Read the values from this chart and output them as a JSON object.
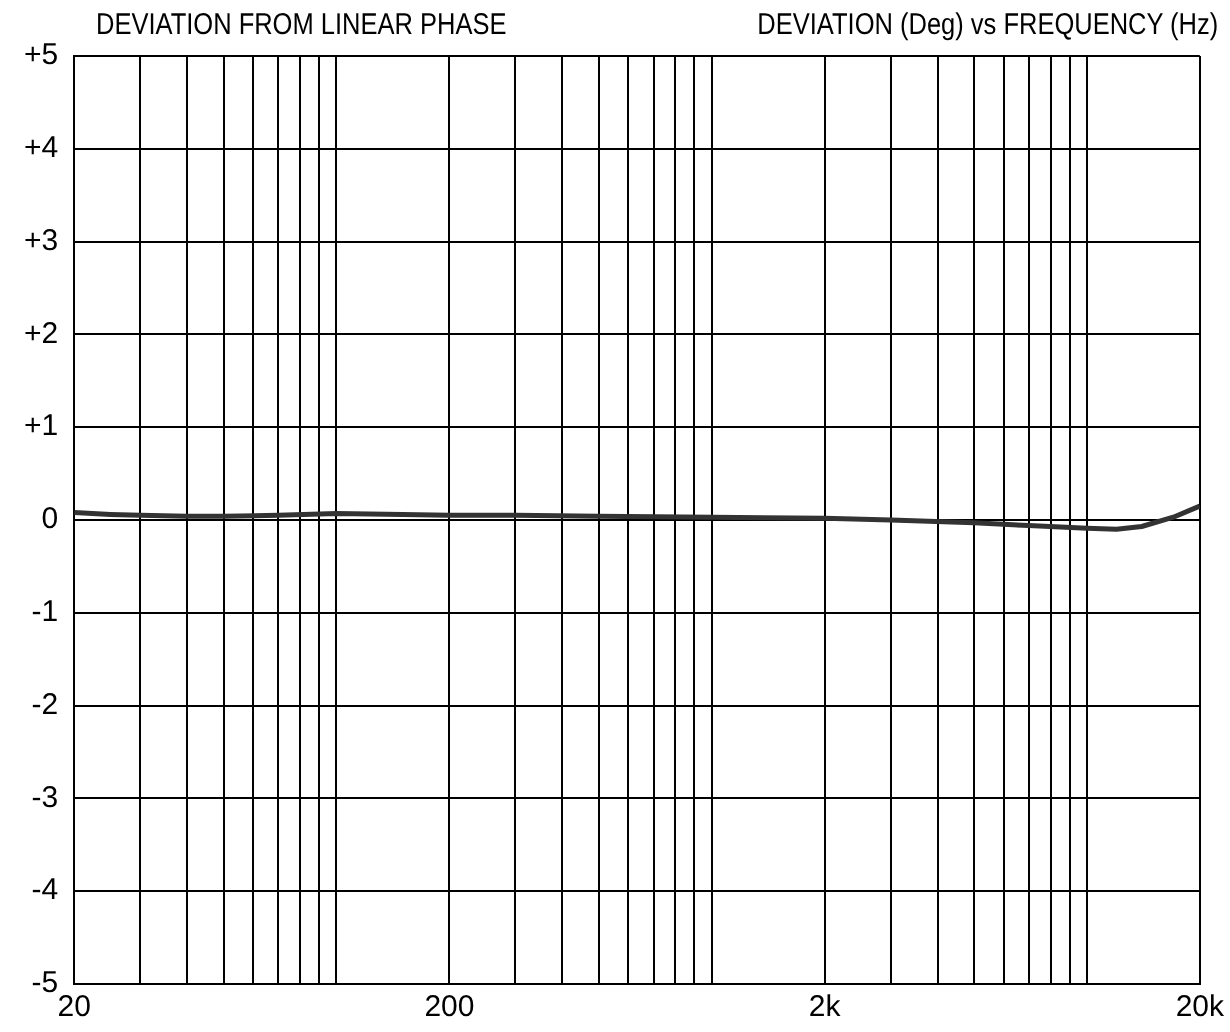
{
  "chart_data": {
    "type": "line",
    "title": "DEVIATION FROM LINEAR PHASE",
    "subtitle": "DEVIATION (Deg) vs FREQUENCY (Hz)",
    "log": "x",
    "grid": true,
    "legend": false,
    "marker": "none",
    "line_style": "solid",
    "x": [
      20,
      25,
      30,
      40,
      50,
      70,
      100,
      150,
      200,
      300,
      500,
      1000,
      2000,
      3000,
      5000,
      7000,
      10000,
      12000,
      14000,
      17000,
      20000
    ],
    "series": [
      {
        "color": "#333333",
        "values": [
          0.08,
          0.06,
          0.05,
          0.04,
          0.04,
          0.05,
          0.07,
          0.06,
          0.05,
          0.05,
          0.04,
          0.03,
          0.02,
          0,
          -0.03,
          -0.06,
          -0.09,
          -0.1,
          -0.07,
          0.03,
          0.15
        ]
      }
    ],
    "xlim": [
      20,
      20000
    ],
    "xticks": [
      20,
      {
        "value": 30,
        "label": null
      },
      {
        "value": 40,
        "label": null
      },
      {
        "value": 50,
        "label": null
      },
      {
        "value": 60,
        "label": null
      },
      {
        "value": 70,
        "label": null
      },
      {
        "value": 80,
        "label": null
      },
      {
        "value": 90,
        "label": null
      },
      {
        "value": 100,
        "label": null
      },
      200,
      {
        "value": 300,
        "label": null
      },
      {
        "value": 400,
        "label": null
      },
      {
        "value": 500,
        "label": null
      },
      {
        "value": 600,
        "label": null
      },
      {
        "value": 700,
        "label": null
      },
      {
        "value": 800,
        "label": null
      },
      {
        "value": 900,
        "label": null
      },
      {
        "value": 1000,
        "label": null
      },
      {
        "value": 2000,
        "label": "2k"
      },
      {
        "value": 3000,
        "label": null
      },
      {
        "value": 4000,
        "label": null
      },
      {
        "value": 5000,
        "label": null
      },
      {
        "value": 6000,
        "label": null
      },
      {
        "value": 7000,
        "label": null
      },
      {
        "value": 8000,
        "label": null
      },
      {
        "value": 9000,
        "label": null
      },
      {
        "value": 10000,
        "label": null
      },
      {
        "value": 20000,
        "label": "20k"
      }
    ],
    "ylim": [
      -5,
      5
    ],
    "yticks": [
      -5,
      -4,
      -3,
      -2,
      -1,
      0,
      {
        "value": 1,
        "label": "+1"
      },
      {
        "value": 2,
        "label": "+2"
      },
      {
        "value": 3,
        "label": "+3"
      },
      {
        "value": 4,
        "label": "+4"
      },
      {
        "value": 5,
        "label": "+5"
      }
    ]
  }
}
